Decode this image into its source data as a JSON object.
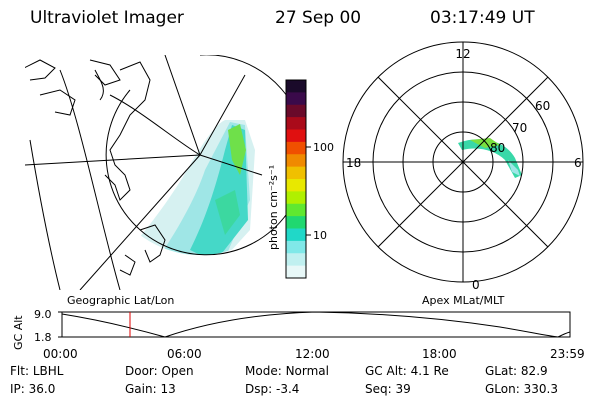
{
  "header": {
    "title": "Ultraviolet Imager",
    "date": "27 Sep 00",
    "time": "03:17:49 UT"
  },
  "colorbar": {
    "label": "photon cm⁻²s⁻¹",
    "ticks": [
      "100",
      "10"
    ],
    "colors": [
      "#1a0a2a",
      "#3a0a4a",
      "#6a0a2a",
      "#aa0a1a",
      "#e01010",
      "#f05000",
      "#f08a00",
      "#f0c000",
      "#e8e800",
      "#b0f000",
      "#60e830",
      "#20d870",
      "#20d8c8",
      "#80e8e8",
      "#c0f0f0",
      "#e8f8f8"
    ]
  },
  "left_map": {
    "caption": "Geographic Lat/Lon"
  },
  "right_map": {
    "caption": "Apex MLat/MLT",
    "mlt_labels": {
      "top": "12",
      "left": "18",
      "right": "6",
      "bottom": "0"
    },
    "lat_labels": [
      "60",
      "70",
      "80"
    ]
  },
  "timeline": {
    "ylabel": "GC Alt",
    "y_ticks": [
      "9.0",
      "1.8"
    ],
    "x_ticks": [
      "00:00",
      "06:00",
      "12:00",
      "18:00",
      "23:59"
    ]
  },
  "status": {
    "row1": [
      {
        "key": "Flt:",
        "value": "LBHL"
      },
      {
        "key": "Door:",
        "value": "Open"
      },
      {
        "key": "Mode:",
        "value": "Normal"
      },
      {
        "key": "GC Alt:",
        "value": "4.1 Re"
      },
      {
        "key": "GLat:",
        "value": "82.9"
      }
    ],
    "row2": [
      {
        "key": "IP:",
        "value": "36.0"
      },
      {
        "key": "Gain:",
        "value": "13"
      },
      {
        "key": "Dsp:",
        "value": "-3.4"
      },
      {
        "key": "Seq:",
        "value": "39"
      },
      {
        "key": "GLon:",
        "value": "330.3"
      }
    ]
  }
}
